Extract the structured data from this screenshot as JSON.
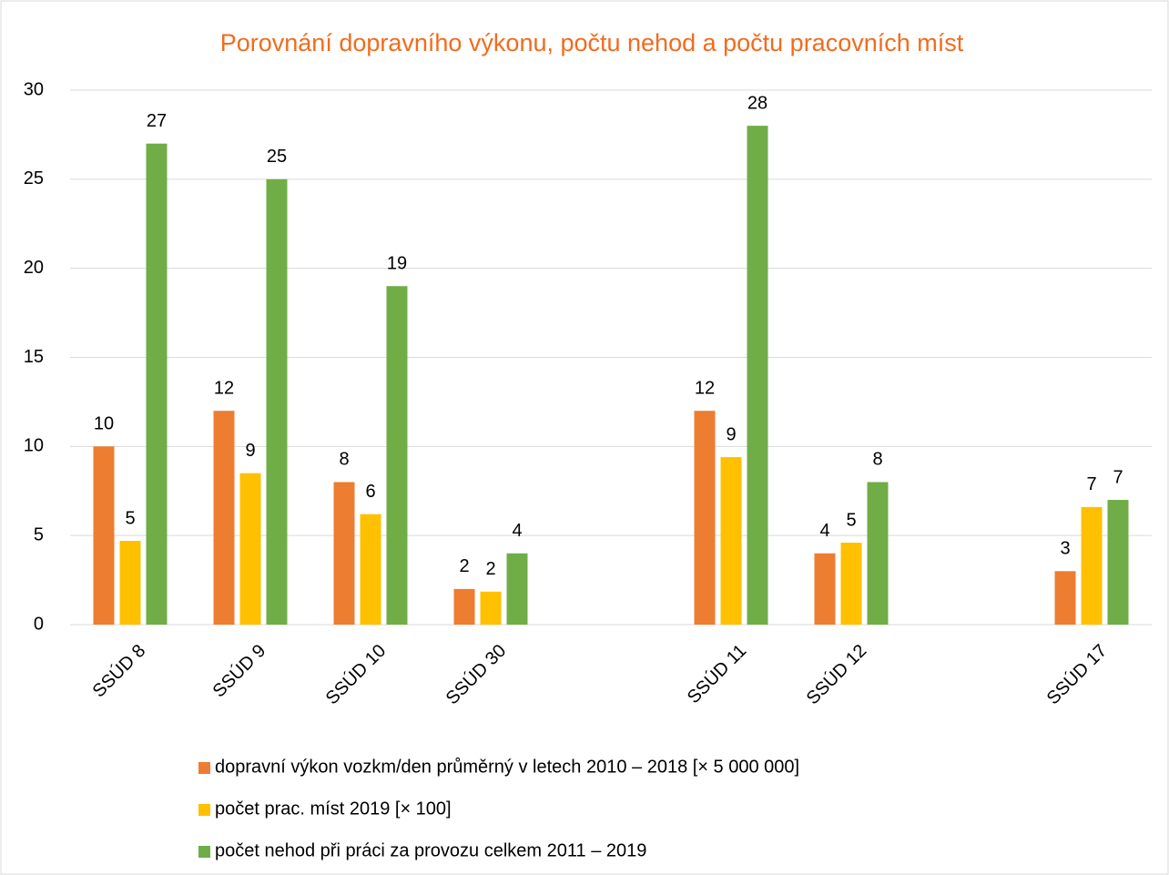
{
  "chart_data": {
    "type": "bar",
    "title": "Porovnání dopravního výkonu, počtu nehod a počtu pracovních míst",
    "categories": [
      "SSÚD 8",
      "SSÚD 9",
      "SSÚD 10",
      "SSÚD 30",
      null,
      "SSÚD 11",
      "SSÚD 12",
      null,
      "SSÚD 17"
    ],
    "series": [
      {
        "name": "dopravní výkon vozkm/den průměrný v letech 2010 – 2018 [× 5 000 000]",
        "color": "#ed7d31",
        "values": [
          10,
          12,
          8,
          2,
          null,
          12,
          4,
          null,
          3
        ]
      },
      {
        "name": "počet prac. míst 2019 [× 100]",
        "color": "#ffc000",
        "values": [
          4.7,
          8.5,
          6.2,
          1.85,
          null,
          9.4,
          4.6,
          null,
          6.6
        ],
        "value_labels": [
          "5",
          "9",
          "6",
          "2",
          null,
          "9",
          "5",
          null,
          "7"
        ]
      },
      {
        "name": "počet nehod při práci za provozu celkem 2011 – 2019",
        "color": "#70ad47",
        "values": [
          27,
          25,
          19,
          4,
          null,
          28,
          8,
          null,
          7
        ]
      }
    ],
    "ylim": [
      0,
      30
    ],
    "yticks": [
      0,
      5,
      10,
      15,
      20,
      25,
      30
    ],
    "grid": true,
    "legend": "bottom"
  }
}
